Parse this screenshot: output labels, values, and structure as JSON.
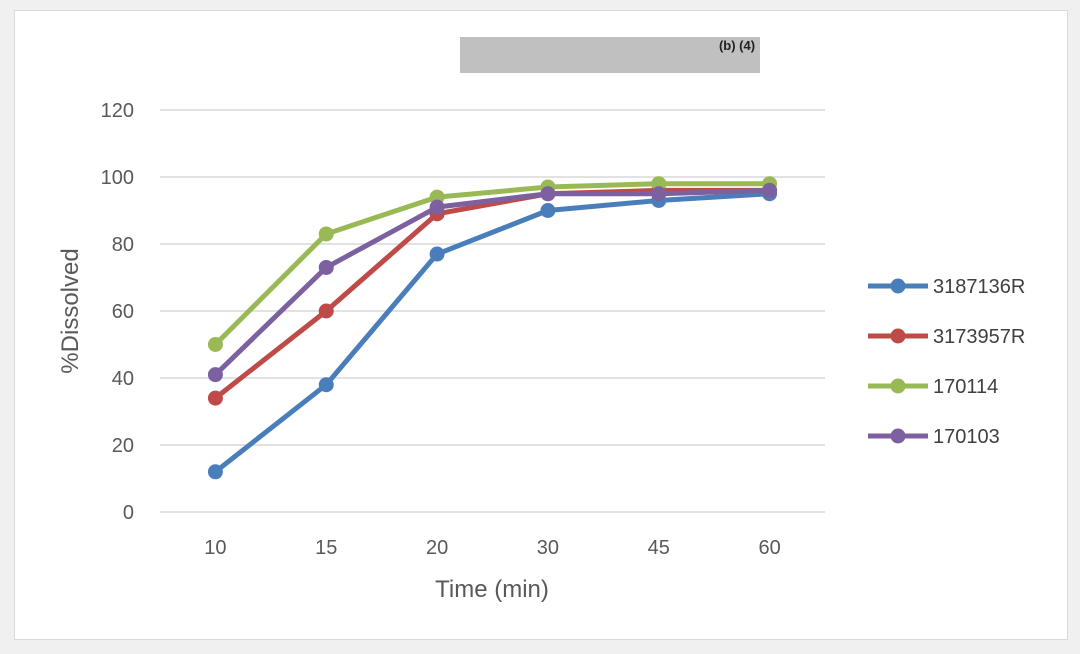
{
  "redaction": {
    "label": "(b) (4)",
    "color": "#c0c0c0"
  },
  "chart_data": {
    "type": "line",
    "title": "",
    "xlabel": "Time (min)",
    "ylabel": "%Dissolved",
    "categories": [
      "10",
      "15",
      "20",
      "30",
      "45",
      "60"
    ],
    "ylim": [
      0,
      120
    ],
    "yticks": [
      0,
      20,
      40,
      60,
      80,
      100,
      120
    ],
    "grid": true,
    "legend_position": "right",
    "series": [
      {
        "name": "3187136R",
        "color": "#4a7ebb",
        "values": [
          12,
          38,
          77,
          90,
          93,
          95
        ]
      },
      {
        "name": "3173957R",
        "color": "#be4b48",
        "values": [
          34,
          60,
          89,
          95,
          96,
          96
        ]
      },
      {
        "name": "170114",
        "color": "#98b954",
        "values": [
          50,
          83,
          94,
          97,
          98,
          98
        ]
      },
      {
        "name": "170103",
        "color": "#7d60a0",
        "values": [
          41,
          73,
          91,
          95,
          95,
          96
        ]
      }
    ]
  }
}
